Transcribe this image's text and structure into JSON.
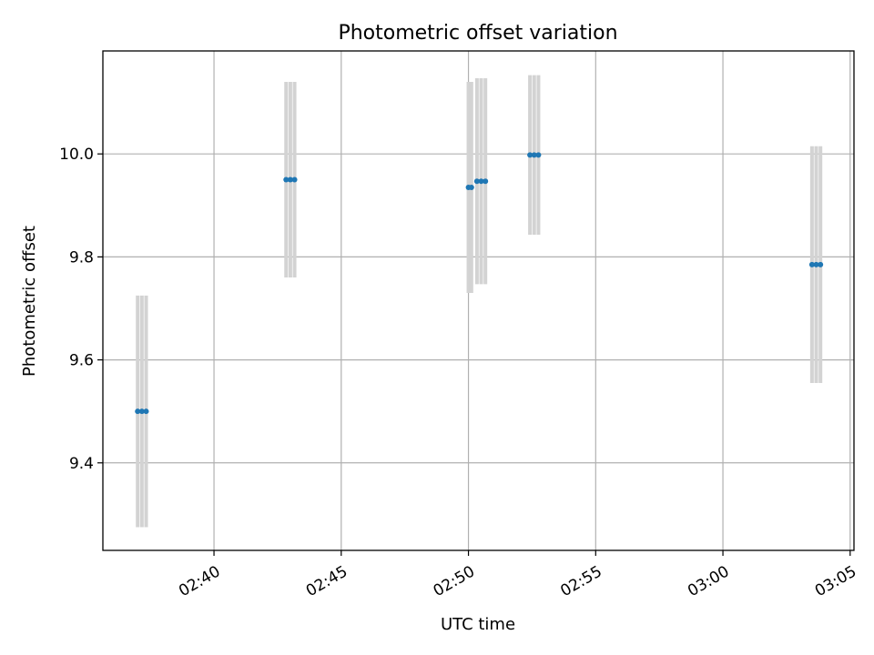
{
  "chart_data": {
    "type": "scatter",
    "title": "Photometric offset variation",
    "xlabel": "UTC time",
    "ylabel": "Photometric offset",
    "x_ticks": [
      "02:40",
      "02:45",
      "02:50",
      "02:55",
      "03:00",
      "03:05"
    ],
    "y_ticks": [
      "9.4",
      "9.6",
      "9.8",
      "10.0"
    ],
    "xlim": [
      "02:35:38",
      "03:05:09"
    ],
    "ylim": [
      9.23,
      10.2
    ],
    "grid": true,
    "series": [
      {
        "x": [
          "02:37:00",
          "02:37:10",
          "02:37:20",
          "02:42:50",
          "02:43:00",
          "02:43:10",
          "02:50:00",
          "02:50:07",
          "02:50:20",
          "02:50:30",
          "02:50:40",
          "02:52:25",
          "02:52:35",
          "02:52:45",
          "03:03:30",
          "03:03:40",
          "03:03:50"
        ],
        "y": [
          9.5,
          9.5,
          9.5,
          9.95,
          9.95,
          9.95,
          9.935,
          9.935,
          9.947,
          9.947,
          9.947,
          9.998,
          9.998,
          9.998,
          9.785,
          9.785,
          9.785
        ],
        "yerr": [
          0.225,
          0.225,
          0.225,
          0.19,
          0.19,
          0.19,
          0.205,
          0.205,
          0.2,
          0.2,
          0.2,
          0.155,
          0.155,
          0.155,
          0.23,
          0.23,
          0.23
        ],
        "color": "#1f77b4",
        "errorbar_color": "#d3d3d3"
      }
    ]
  }
}
